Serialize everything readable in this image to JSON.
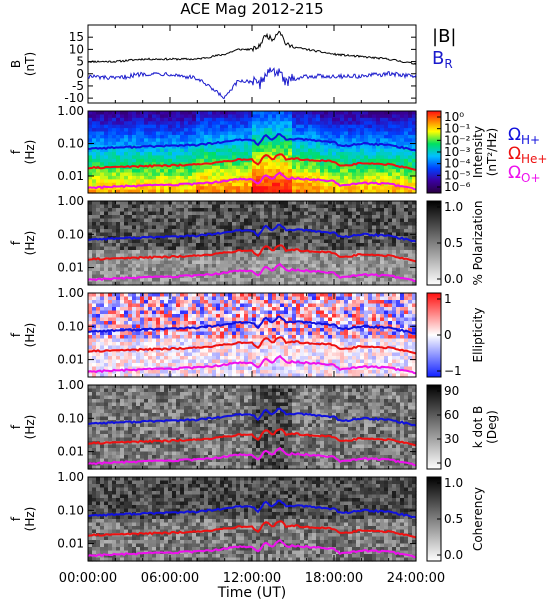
{
  "title": "ACE Mag 2012-215",
  "x_axis": {
    "label": "Time (UT)",
    "tick_labels": [
      "00:00:00",
      "06:00:00",
      "12:00:00",
      "18:00:00",
      "24:00:00"
    ],
    "range_hours": [
      0,
      24
    ]
  },
  "colors": {
    "B_total": "#000000",
    "B_R": "#1a1acc",
    "H_plus": "#1111dd",
    "He_plus": "#ee1111",
    "O_plus": "#ee11ee"
  },
  "chart_data": [
    {
      "type": "line",
      "panel": "magnetic-field",
      "ylabel": "B (nT)",
      "ylim": [
        -12,
        20
      ],
      "y_tick_labels": [
        "15",
        "10",
        "5",
        "0",
        "-5",
        "-10"
      ],
      "x_hours": [
        0,
        2,
        4,
        6,
        8,
        9,
        10,
        11,
        12,
        12.5,
        13,
        13.5,
        14,
        14.5,
        15,
        16,
        18,
        20,
        22,
        24
      ],
      "series": [
        {
          "name": "|B|",
          "values": [
            5,
            5,
            6,
            6,
            6,
            7,
            8,
            10,
            10,
            11,
            16,
            14,
            18,
            12,
            11,
            10,
            8,
            7,
            6,
            4
          ]
        },
        {
          "name": "B_R",
          "values": [
            -1,
            -2,
            0,
            0,
            -2,
            -6,
            -10,
            -3,
            -3,
            -5,
            0,
            2,
            0,
            -4,
            -2,
            -1,
            -1,
            -1,
            0,
            -1
          ]
        }
      ],
      "legend": [
        "|B|",
        "B_R"
      ]
    },
    {
      "type": "heatmap",
      "panel": "power-spectrum",
      "ylabel": "f (Hz)",
      "y_tick_labels": [
        "1.00",
        "0.10",
        "0.01"
      ],
      "colorbar_label": "Intensity (nT²/Hz)",
      "colorbar_ticks": [
        "10⁰",
        "10⁻¹",
        "10⁻²",
        "10⁻³",
        "10⁻⁴",
        "10⁻⁵",
        "10⁻⁶"
      ],
      "legend": [
        "Ω_H+",
        "Ω_He+",
        "Ω_O+"
      ]
    },
    {
      "type": "heatmap",
      "panel": "polarization",
      "ylabel": "f (Hz)",
      "y_tick_labels": [
        "1.00",
        "0.10",
        "0.01"
      ],
      "colorbar_label": "% Polarization",
      "colorbar_ticks": [
        "1.0",
        "0.5",
        "0.0"
      ]
    },
    {
      "type": "heatmap",
      "panel": "ellipticity",
      "ylabel": "f (Hz)",
      "y_tick_labels": [
        "1.00",
        "0.10",
        "0.01"
      ],
      "colorbar_label": "Ellipticity",
      "colorbar_ticks": [
        "1",
        "0",
        "−1"
      ]
    },
    {
      "type": "heatmap",
      "panel": "k-dot-b",
      "ylabel": "f (Hz)",
      "y_tick_labels": [
        "1.00",
        "0.10",
        "0.01"
      ],
      "colorbar_label": "k dot B (Deg)",
      "colorbar_ticks": [
        "90",
        "60",
        "30",
        "0"
      ]
    },
    {
      "type": "heatmap",
      "panel": "coherency",
      "ylabel": "f (Hz)",
      "y_tick_labels": [
        "1.00",
        "0.10",
        "0.01"
      ],
      "colorbar_label": "Coherency",
      "colorbar_ticks": [
        "1.0",
        "0.5",
        "0.0"
      ]
    }
  ],
  "gyrofrequency_lines": {
    "x_hours": [
      0,
      2,
      4,
      6,
      8,
      9,
      10,
      11,
      12,
      12.5,
      13,
      13.5,
      14,
      14.5,
      15,
      16,
      18,
      18.5,
      20,
      22,
      24
    ],
    "H_plus_hz": [
      0.07,
      0.075,
      0.08,
      0.085,
      0.09,
      0.1,
      0.11,
      0.13,
      0.13,
      0.09,
      0.18,
      0.12,
      0.2,
      0.13,
      0.14,
      0.13,
      0.11,
      0.08,
      0.1,
      0.09,
      0.06
    ],
    "He_plus_hz": [
      0.0175,
      0.019,
      0.02,
      0.021,
      0.023,
      0.025,
      0.028,
      0.032,
      0.032,
      0.022,
      0.045,
      0.03,
      0.05,
      0.033,
      0.035,
      0.032,
      0.028,
      0.02,
      0.025,
      0.023,
      0.015
    ],
    "O_plus_hz": [
      0.0044,
      0.0047,
      0.005,
      0.0053,
      0.0057,
      0.0062,
      0.007,
      0.008,
      0.008,
      0.0055,
      0.011,
      0.0075,
      0.0125,
      0.0082,
      0.0087,
      0.008,
      0.007,
      0.005,
      0.0062,
      0.0057,
      0.0038
    ]
  }
}
